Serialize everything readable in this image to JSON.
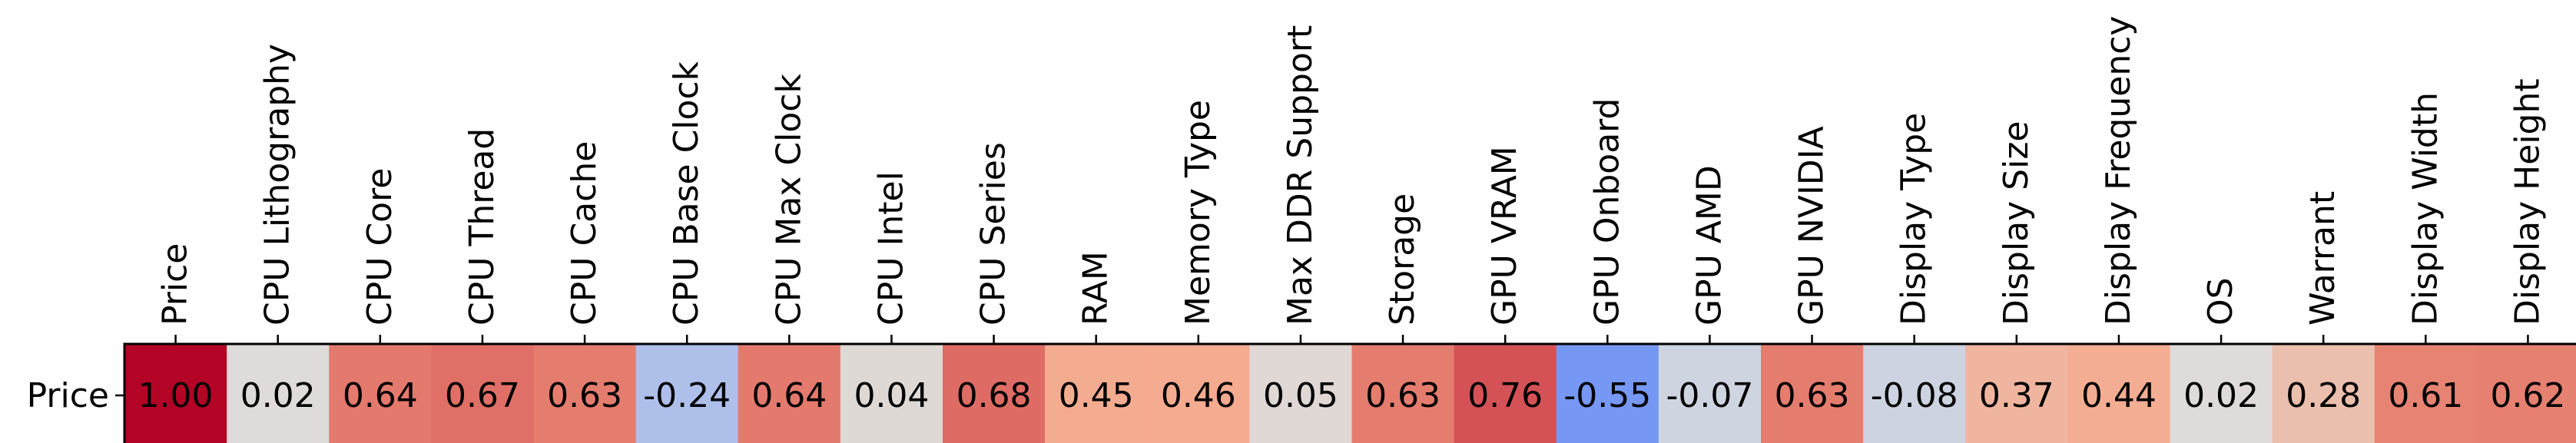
{
  "chart_data": {
    "type": "heatmap",
    "title": "",
    "rows": [
      "Price"
    ],
    "columns": [
      "Price",
      "CPU Lithography",
      "CPU Core",
      "CPU Thread",
      "CPU Cache",
      "CPU Base Clock",
      "CPU Max Clock",
      "CPU Intel",
      "CPU Series",
      "RAM",
      "Memory Type",
      "Max DDR Support",
      "Storage",
      "GPU VRAM",
      "GPU Onboard",
      "GPU AMD",
      "GPU NVIDIA",
      "Display Type",
      "Display Size",
      "Display Frequency",
      "OS",
      "Warrant",
      "Display Width",
      "Display Height"
    ],
    "values": [
      [
        1.0,
        0.02,
        0.64,
        0.67,
        0.63,
        -0.24,
        0.64,
        0.04,
        0.68,
        0.45,
        0.46,
        0.05,
        0.63,
        0.76,
        -0.55,
        -0.07,
        0.63,
        -0.08,
        0.37,
        0.44,
        0.02,
        0.28,
        0.61,
        0.62
      ]
    ],
    "value_labels": [
      [
        "1.00",
        "0.02",
        "0.64",
        "0.67",
        "0.63",
        "-0.24",
        "0.64",
        "0.04",
        "0.68",
        "0.45",
        "0.46",
        "0.05",
        "0.63",
        "0.76",
        "-0.55",
        "-0.07",
        "0.63",
        "-0.08",
        "0.37",
        "0.44",
        "0.02",
        "0.28",
        "0.61",
        "0.62"
      ]
    ],
    "colormap": "coolwarm",
    "vmin": -1,
    "vmax": 1,
    "column_labels_position": "top",
    "colorbar": false
  }
}
